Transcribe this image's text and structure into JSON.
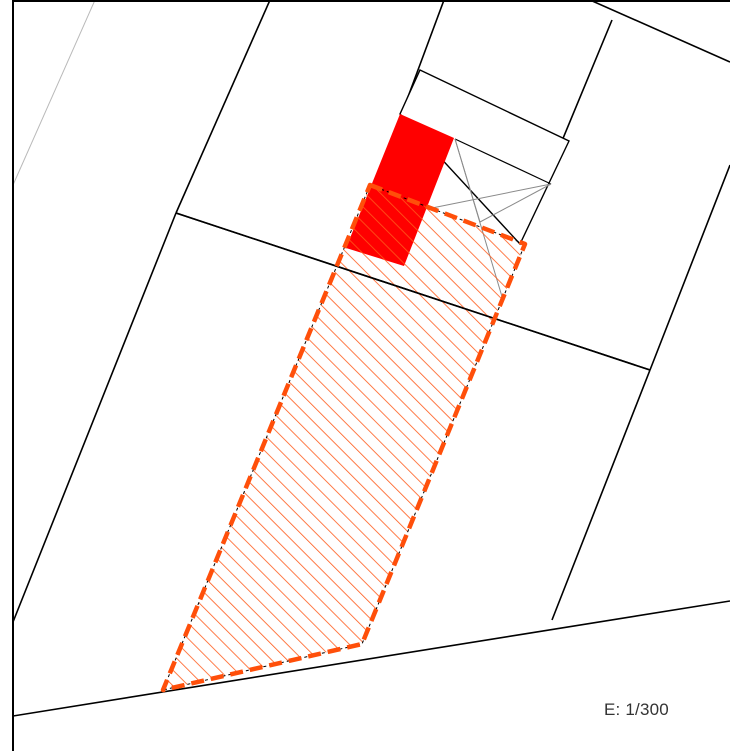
{
  "map": {
    "scale_text": "E: 1/300",
    "colors": {
      "parcel_line": "#000000",
      "thin_line": "#8a8a8a",
      "faint_line": "#b9b9b9",
      "highlight_outline": "#ff4f0a",
      "highlight_hatch": "#ff5a1a",
      "building_fill": "#ff0000",
      "background": "#ffffff"
    }
  }
}
